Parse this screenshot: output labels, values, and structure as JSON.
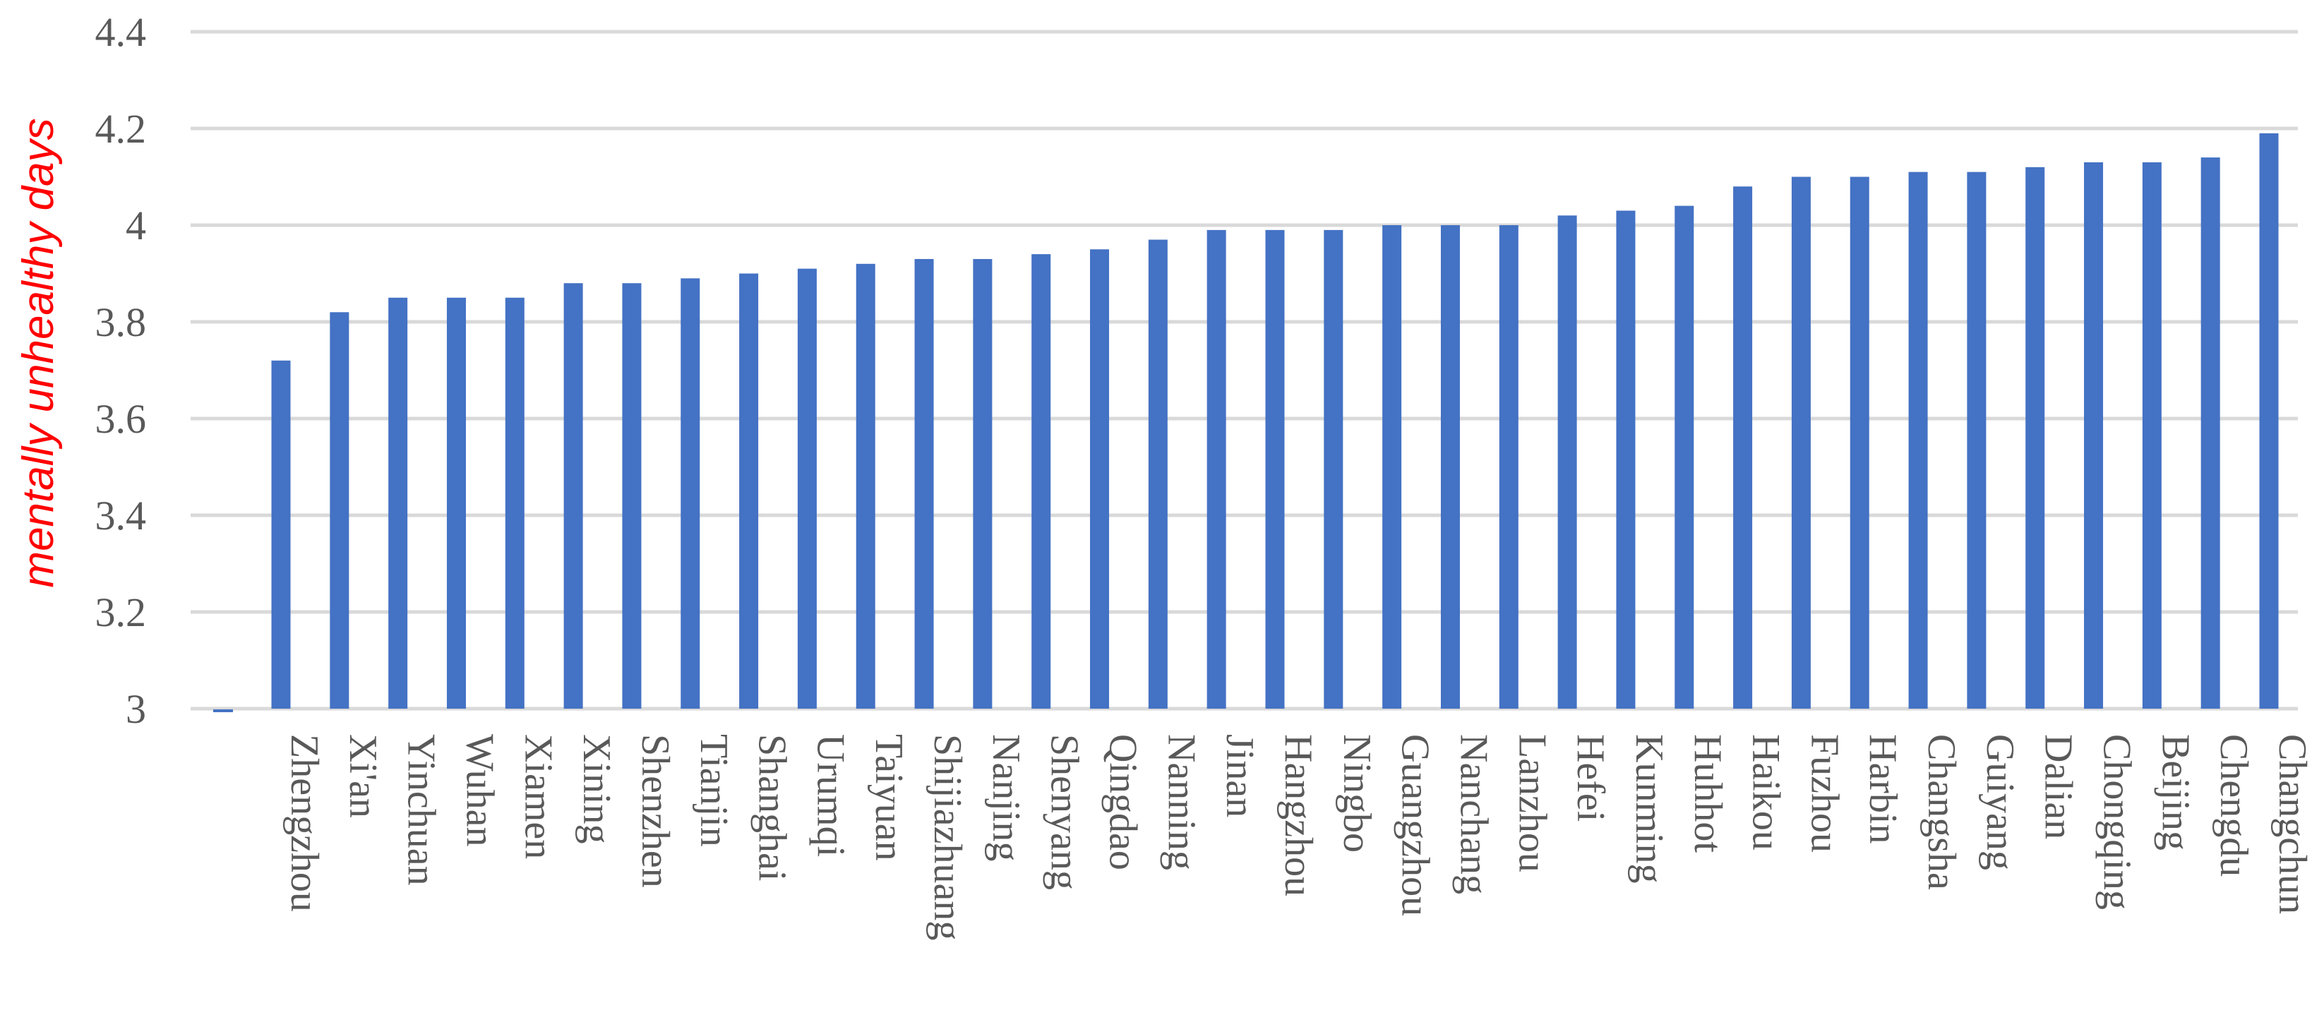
{
  "chart_data": {
    "type": "bar",
    "title": "",
    "xlabel": "",
    "ylabel": "mentally unhealthy days",
    "ylim": [
      3,
      4.4
    ],
    "yticks": [
      3,
      3.2,
      3.4,
      3.6,
      3.8,
      4,
      4.2,
      4.4
    ],
    "ytick_labels": [
      "3",
      "3.2",
      "3.4",
      "3.6",
      "3.8",
      "4",
      "4.2",
      "4.4"
    ],
    "grid": true,
    "categories": [
      "Zhengzhou",
      "Xi'an",
      "Yinchuan",
      "Wuhan",
      "Xiamen",
      "Xining",
      "Shenzhen",
      "Tianjin",
      "Shanghai",
      "Urumqi",
      "Taiyuan",
      "Shijiazhuang",
      "Nanjing",
      "Shenyang",
      "Qingdao",
      "Nanning",
      "Jinan",
      "Hangzhou",
      "Ningbo",
      "Guangzhou",
      "Nanchang",
      "Lanzhou",
      "Hefei",
      "Kunming",
      "Huhhot",
      "Haikou",
      "Fuzhou",
      "Harbin",
      "Changsha",
      "Guiyang",
      "Dalian",
      "Chongqing",
      "Beijing",
      "Chengdu",
      "Changchun"
    ],
    "values": [
      3.72,
      3.82,
      3.85,
      3.85,
      3.85,
      3.88,
      3.88,
      3.89,
      3.9,
      3.91,
      3.92,
      3.93,
      3.93,
      3.94,
      3.95,
      3.97,
      3.99,
      3.99,
      3.99,
      4.0,
      4.0,
      4.0,
      4.02,
      4.03,
      4.04,
      4.08,
      4.1,
      4.1,
      4.11,
      4.11,
      4.12,
      4.13,
      4.13,
      4.14,
      4.19
    ],
    "colors": {
      "bar": "#4472c4",
      "ylabel": "#ff0000",
      "grid": "#d9d9d9",
      "text": "#595959"
    }
  }
}
